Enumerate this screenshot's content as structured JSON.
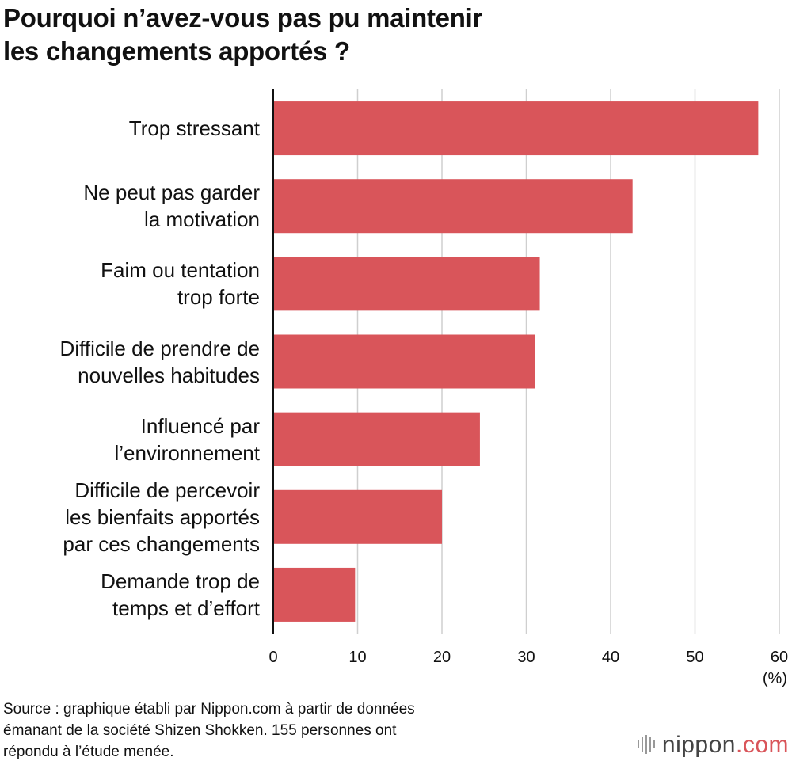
{
  "chart_data": {
    "type": "hbar",
    "title": "Pourquoi n’avez-vous pas pu maintenir\nles changements apportés ?",
    "categories": [
      "Trop stressant",
      "Ne peut pas garder\nla motivation",
      "Faim ou tentation\ntrop forte",
      "Difficile de prendre de\nnouvelles habitudes",
      "Influencé par\nl’environnement",
      "Difficile de percevoir\nles bienfaits apportés\npar ces changements",
      "Demande trop de\ntemps et d’effort"
    ],
    "values": [
      57.5,
      42.6,
      31.6,
      31.0,
      24.5,
      20.0,
      9.7
    ],
    "color": "#d9555a",
    "xlim": [
      0,
      60
    ],
    "xticks": [
      0,
      10,
      20,
      30,
      40,
      50,
      60
    ],
    "x_unit": "(%)",
    "grid": true,
    "source": "Source : graphique établi par Nippon.com à partir de données\némanant de la société Shizen Shokken. 155 personnes ont\nrépondu à l’étude menée.",
    "logo": {
      "name": "nippon",
      "suffix": ".com"
    }
  }
}
